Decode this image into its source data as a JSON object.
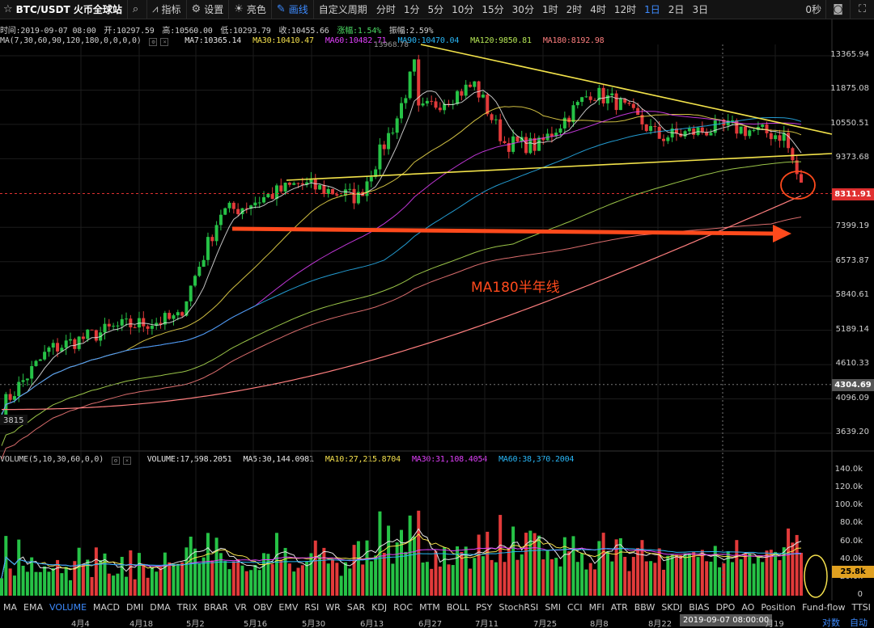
{
  "toolbar": {
    "symbol": "BTC/USDT 火币全球站",
    "indicators_label": "指标",
    "settings_label": "设置",
    "theme_label": "亮色",
    "draw_label": "画线",
    "custom_period_label": "自定义周期",
    "timeframes": [
      "分时",
      "1分",
      "5分",
      "10分",
      "15分",
      "30分",
      "1时",
      "2时",
      "4时",
      "12时",
      "1日",
      "2日",
      "3日"
    ],
    "active_timeframe": "1日",
    "countdown": "0秒"
  },
  "ohlc": {
    "time": "时间:2019-09-07 08:00",
    "open": "开:10297.59",
    "high": "高:10560.00",
    "low": "低:10293.79",
    "close": "收:10455.66",
    "change": "涨幅:1.54%",
    "amplitude": "振幅:2.59%"
  },
  "ma_legend": {
    "params": "MA(7,30,60,90,120,180,0,0,0,0)",
    "items": [
      {
        "label": "MA7:10365.14",
        "color": "#e6e6e6"
      },
      {
        "label": "MA30:10410.47",
        "color": "#f4e04d"
      },
      {
        "label": "MA60:10482.71",
        "color": "#e040fb"
      },
      {
        "label": "MA90:10470.04",
        "color": "#29b6f6"
      },
      {
        "label": "MA120:9850.81",
        "color": "#b5e655"
      },
      {
        "label": "MA180:8192.98",
        "color": "#ff7f7f"
      }
    ]
  },
  "vol_legend": {
    "params": "VOLUME(5,10,30,60,0,0)",
    "items": [
      {
        "label": "VOLUME:17,598.2051",
        "color": "#e6e6e6"
      },
      {
        "label": "MA5:30,144.0981",
        "color": "#e6e6e6"
      },
      {
        "label": "MA10:27,215.8704",
        "color": "#f4e04d"
      },
      {
        "label": "MA30:31,108.4054",
        "color": "#e040fb"
      },
      {
        "label": "MA60:38,370.2004",
        "color": "#29b6f6"
      }
    ]
  },
  "price_axis": {
    "ticks": [
      "13365.94",
      "11875.08",
      "10550.51",
      "9373.68",
      "7399.19",
      "6573.87",
      "5840.61",
      "5189.14",
      "4610.33",
      "4096.09",
      "3639.20"
    ],
    "current_price": "8311.91",
    "crosshair_price": "4304.69"
  },
  "volume_axis": {
    "ticks": [
      "140.0k",
      "120.0k",
      "100.0k",
      "80.0k",
      "60.0k",
      "40.0k",
      "20.0k",
      "0"
    ],
    "current_volume": "25.8k"
  },
  "annotations": {
    "high_marker": "13968.78",
    "low_marker": "3815",
    "ma180_text": "MA180半年线"
  },
  "indicator_tabs": [
    "MA",
    "EMA",
    "VOLUME",
    "MACD",
    "DMI",
    "DMA",
    "TRIX",
    "BRAR",
    "VR",
    "OBV",
    "EMV",
    "RSI",
    "WR",
    "SAR",
    "KDJ",
    "ROC",
    "MTM",
    "BOLL",
    "PSY",
    "StochRSI",
    "SMI",
    "CCI",
    "MFI",
    "ATR",
    "BBW",
    "SKDJ",
    "BIAS",
    "DPO",
    "AO",
    "Position",
    "Fund-flow",
    "TTSI"
  ],
  "active_indicator": "VOLUME",
  "date_axis": {
    "labels": [
      "4月4",
      "4月18",
      "5月2",
      "5月16",
      "5月30",
      "6月13",
      "6月27",
      "7月11",
      "7月25",
      "8月8",
      "8月22",
      "月19"
    ],
    "crosshair_date": "2019-09-07 08:00:00",
    "scale_btn_log": "对数",
    "scale_btn_auto": "自动"
  },
  "chart_data": {
    "type": "candlestick",
    "symbol": "BTC/USDT",
    "interval": "1日",
    "y_scale": "log",
    "y_range": [
      3500,
      14500
    ],
    "approx_close_path": [
      {
        "date": "2019-03-22",
        "close": 3990
      },
      {
        "date": "2019-04-02",
        "close": 4850
      },
      {
        "date": "2019-04-18",
        "close": 5250
      },
      {
        "date": "2019-05-02",
        "close": 5400
      },
      {
        "date": "2019-05-12",
        "close": 7800
      },
      {
        "date": "2019-05-16",
        "close": 7900
      },
      {
        "date": "2019-05-30",
        "close": 8600
      },
      {
        "date": "2019-06-13",
        "close": 8200
      },
      {
        "date": "2019-06-22",
        "close": 10800
      },
      {
        "date": "2019-06-26",
        "close": 12900
      },
      {
        "date": "2019-06-27",
        "close": 11000
      },
      {
        "date": "2019-07-10",
        "close": 12100
      },
      {
        "date": "2019-07-17",
        "close": 9900
      },
      {
        "date": "2019-07-25",
        "close": 9800
      },
      {
        "date": "2019-08-06",
        "close": 11800
      },
      {
        "date": "2019-08-12",
        "close": 11400
      },
      {
        "date": "2019-08-22",
        "close": 10100
      },
      {
        "date": "2019-09-07",
        "close": 10455
      },
      {
        "date": "2019-09-20",
        "close": 10150
      },
      {
        "date": "2019-09-24",
        "close": 8500
      }
    ]
  }
}
